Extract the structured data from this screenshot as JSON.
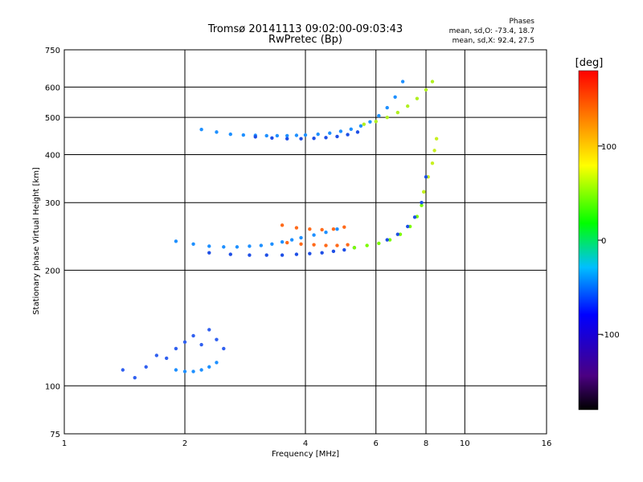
{
  "title": {
    "line1": "Tromsø 20141113 09:02:00-09:03:43",
    "line2": "RwPretec (Bp)"
  },
  "stats": {
    "heading": "Phases",
    "o_line": "mean, sd,O: -73.4, 18.7",
    "x_line": "mean, sd,X:  92.4, 27.5"
  },
  "colorbar": {
    "unit_label": "[deg]",
    "ticks": [
      {
        "value": 100,
        "label": "100"
      },
      {
        "value": 0,
        "label": "0"
      },
      {
        "value": -100,
        "label": "-100"
      }
    ],
    "range": [
      -180,
      180
    ]
  },
  "chart_data": {
    "type": "scatter",
    "xlabel": "Frequency [MHz]",
    "ylabel": "Stationary phase Virtual Height [km]",
    "xscale": "log",
    "yscale": "log",
    "xlim": [
      1,
      16
    ],
    "ylim": [
      75,
      750
    ],
    "xticks": [
      {
        "value": 1,
        "label": "1"
      },
      {
        "value": 2,
        "label": "2"
      },
      {
        "value": 4,
        "label": "4"
      },
      {
        "value": 6,
        "label": "6"
      },
      {
        "value": 8,
        "label": "8"
      },
      {
        "value": 10,
        "label": "10"
      },
      {
        "value": 16,
        "label": "16"
      }
    ],
    "yticks": [
      {
        "value": 75,
        "label": "75"
      },
      {
        "value": 100,
        "label": "100"
      },
      {
        "value": 200,
        "label": "200"
      },
      {
        "value": 300,
        "label": "300"
      },
      {
        "value": 400,
        "label": "400"
      },
      {
        "value": 500,
        "label": "500"
      },
      {
        "value": 600,
        "label": "600"
      },
      {
        "value": 750,
        "label": "750"
      }
    ],
    "grid": true,
    "color_by": "phase [deg]",
    "series": [
      {
        "color": "#1e90ff",
        "x": [
          2.2,
          2.4,
          2.6,
          2.8,
          3.0,
          3.2,
          3.4,
          3.6,
          3.8,
          4.0,
          4.3,
          4.6,
          4.9,
          5.2,
          5.5,
          5.8,
          6.1,
          6.4,
          6.7,
          7.0
        ],
        "y": [
          465,
          458,
          452,
          450,
          449,
          448,
          448,
          448,
          449,
          450,
          452,
          455,
          460,
          466,
          475,
          487,
          505,
          530,
          565,
          620
        ]
      },
      {
        "color": "#1e4fe6",
        "x": [
          3.0,
          3.3,
          3.6,
          3.9,
          4.2,
          4.5,
          4.8,
          5.1,
          5.4
        ],
        "y": [
          445,
          442,
          440,
          440,
          441,
          443,
          446,
          451,
          458
        ]
      },
      {
        "color": "#b0f020",
        "x": [
          5.6,
          6.0,
          6.4,
          6.8,
          7.2,
          7.6,
          8.0,
          8.3
        ],
        "y": [
          480,
          488,
          500,
          515,
          535,
          560,
          590,
          620
        ]
      },
      {
        "color": "#1e90ff",
        "x": [
          1.9,
          2.1,
          2.3,
          2.5,
          2.7,
          2.9,
          3.1,
          3.3,
          3.5,
          3.7,
          3.9,
          4.2,
          4.5,
          4.8
        ],
        "y": [
          238,
          234,
          231,
          230,
          230,
          231,
          232,
          234,
          237,
          240,
          243,
          247,
          251,
          256
        ]
      },
      {
        "color": "#1e4fe6",
        "x": [
          2.3,
          2.6,
          2.9,
          3.2,
          3.5,
          3.8,
          4.1,
          4.4,
          4.7,
          5.0,
          5.3
        ],
        "y": [
          222,
          220,
          219,
          219,
          219,
          220,
          221,
          222,
          224,
          226,
          229
        ]
      },
      {
        "color": "#7cfc00",
        "x": [
          5.3,
          5.7,
          6.1,
          6.5,
          6.9,
          7.3,
          7.6,
          7.8,
          7.9
        ],
        "y": [
          229,
          232,
          235,
          240,
          248,
          260,
          276,
          295,
          320
        ]
      },
      {
        "color": "#c8f020",
        "x": [
          7.9,
          8.1,
          8.3,
          8.4,
          8.5
        ],
        "y": [
          320,
          350,
          380,
          410,
          440
        ]
      },
      {
        "color": "#ff6a1a",
        "x": [
          3.5,
          3.8,
          4.1,
          4.4,
          4.7,
          5.0
        ],
        "y": [
          262,
          258,
          256,
          255,
          256,
          259
        ]
      },
      {
        "color": "#ff6a1a",
        "x": [
          3.6,
          3.9,
          4.2,
          4.5,
          4.8,
          5.1
        ],
        "y": [
          236,
          234,
          233,
          232,
          232,
          233
        ]
      },
      {
        "color": "#1e4fe6",
        "x": [
          6.4,
          6.8,
          7.2,
          7.5,
          7.8,
          8.0
        ],
        "y": [
          240,
          248,
          260,
          275,
          300,
          350
        ]
      },
      {
        "color": "#3060f0",
        "x": [
          1.4,
          1.5,
          1.6,
          1.7,
          1.8,
          1.9,
          2.0,
          2.1,
          2.2,
          2.3,
          2.4,
          2.5
        ],
        "y": [
          110,
          105,
          112,
          120,
          118,
          125,
          130,
          135,
          128,
          140,
          132,
          125
        ]
      },
      {
        "color": "#1e90ff",
        "x": [
          1.9,
          2.0,
          2.1,
          2.2,
          2.3,
          2.4
        ],
        "y": [
          110,
          109,
          109,
          110,
          112,
          115
        ]
      }
    ]
  }
}
